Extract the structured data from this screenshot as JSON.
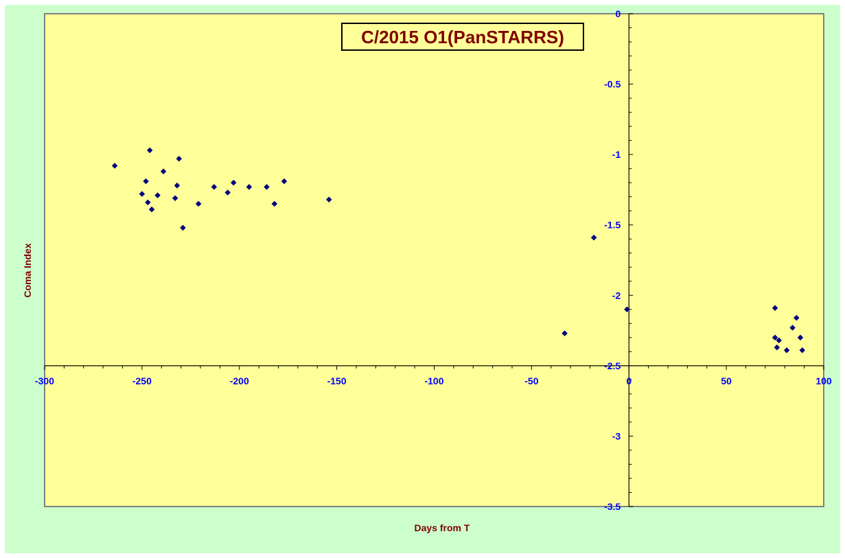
{
  "chart_data": {
    "type": "scatter",
    "title": "C/2015 O1(PanSTARRS)",
    "xlabel": "Days from  T",
    "ylabel": "Coma Index",
    "xlim": [
      -300,
      100
    ],
    "ylim": [
      -3.5,
      0
    ],
    "x_ticks": [
      -300,
      -250,
      -200,
      -150,
      -100,
      -50,
      0,
      50,
      100
    ],
    "x_tick_labels": [
      "-300",
      "-250",
      "-200",
      "-150",
      "-100",
      "-50",
      "0",
      "50",
      "100"
    ],
    "y_ticks": [
      0,
      -0.5,
      -1,
      -1.5,
      -2,
      -2.5,
      -3,
      -3.5
    ],
    "y_tick_labels": [
      "0",
      "-0.5",
      "-1",
      "-1.5",
      "-2",
      "-2.5",
      "-3",
      "-3.5"
    ],
    "x_axis_crosses_y_at": -2.5,
    "y_axis_crosses_x_at": 0,
    "grid": false,
    "legend": "none",
    "colors": {
      "plot_background": "#ffff99",
      "chart_background": "#ccffcc",
      "marker": "#000080",
      "tick_label": "#0000ff",
      "axis_title": "#800000",
      "title": "#800000"
    },
    "points": [
      {
        "x": -264,
        "y": -1.08
      },
      {
        "x": -246,
        "y": -0.97
      },
      {
        "x": -231,
        "y": -1.03
      },
      {
        "x": -239,
        "y": -1.12
      },
      {
        "x": -248,
        "y": -1.19
      },
      {
        "x": -232,
        "y": -1.22
      },
      {
        "x": -250,
        "y": -1.28
      },
      {
        "x": -242,
        "y": -1.29
      },
      {
        "x": -233,
        "y": -1.31
      },
      {
        "x": -247,
        "y": -1.34
      },
      {
        "x": -245,
        "y": -1.39
      },
      {
        "x": -229,
        "y": -1.52
      },
      {
        "x": -213,
        "y": -1.23
      },
      {
        "x": -221,
        "y": -1.35
      },
      {
        "x": -203,
        "y": -1.2
      },
      {
        "x": -206,
        "y": -1.27
      },
      {
        "x": -195,
        "y": -1.23
      },
      {
        "x": -186,
        "y": -1.23
      },
      {
        "x": -177,
        "y": -1.19
      },
      {
        "x": -182,
        "y": -1.35
      },
      {
        "x": -154,
        "y": -1.32
      },
      {
        "x": -18,
        "y": -1.59
      },
      {
        "x": -33,
        "y": -2.27
      },
      {
        "x": -1,
        "y": -2.1
      },
      {
        "x": 75,
        "y": -2.09
      },
      {
        "x": 75,
        "y": -2.3
      },
      {
        "x": 77,
        "y": -2.32
      },
      {
        "x": 76,
        "y": -2.37
      },
      {
        "x": 81,
        "y": -2.39
      },
      {
        "x": 84,
        "y": -2.23
      },
      {
        "x": 86,
        "y": -2.16
      },
      {
        "x": 88,
        "y": -2.3
      },
      {
        "x": 89,
        "y": -2.39
      }
    ]
  }
}
